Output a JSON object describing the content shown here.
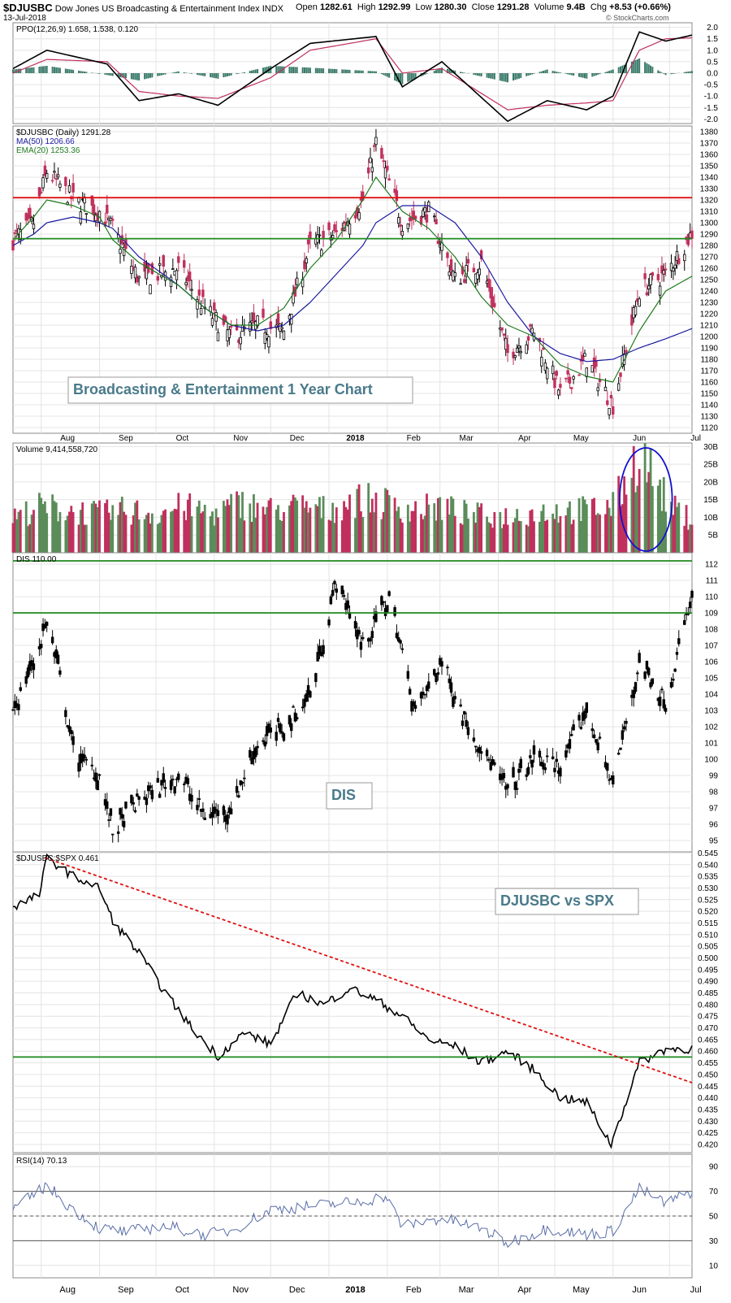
{
  "header": {
    "symbol": "$DJUSBC",
    "name": "Dow Jones US Broadcasting & Entertainment Index",
    "exchange": "INDX",
    "date": "13-Jul-2018",
    "open_label": "Open",
    "open": "1282.61",
    "high_label": "High",
    "high": "1292.99",
    "low_label": "Low",
    "low": "1280.30",
    "close_label": "Close",
    "close": "1291.28",
    "volume_label": "Volume",
    "volume": "9.4B",
    "chg_label": "Chg",
    "chg": "+8.53 (+0.66%)",
    "watermark": "© StockCharts.com"
  },
  "colors": {
    "up": "#5b8c5a",
    "down": "#c0305c",
    "ma50": "#1a1aa0",
    "ema20": "#1e7a1e",
    "resistance": "#e01010",
    "support": "#1e8a1e",
    "trend": "#e01010",
    "ppo_signal": "#c0305c",
    "hist": "#3a7a6a",
    "annot": "#4a7a8a"
  },
  "x_axis": {
    "labels": [
      "Aug",
      "Sep",
      "Oct",
      "Nov",
      "Dec",
      "2018",
      "Feb",
      "Mar",
      "Apr",
      "May",
      "Jun",
      "Jul"
    ],
    "months": [
      "2017-08",
      "2017-09",
      "2017-10",
      "2017-11",
      "2017-12",
      "2018-01",
      "2018-02",
      "2018-03",
      "2018-04",
      "2018-05",
      "2018-06",
      "2018-07"
    ]
  },
  "chart_data": [
    {
      "type": "line",
      "legend": [
        "PPO(12,26,9) 1.658,",
        "1.538,",
        "0.120"
      ],
      "ylim": [
        -2.2,
        2.2
      ],
      "yticks": [
        "2.0",
        "1.5",
        "1.0",
        "0.5",
        "0.0",
        "-0.5",
        "-1.0",
        "-1.5",
        "-2.0"
      ],
      "series": [
        {
          "name": "PPO(12,26,9)",
          "last": 1.658
        },
        {
          "name": "Signal",
          "last": 1.538
        },
        {
          "name": "Histogram",
          "last": 0.12
        }
      ],
      "x": [
        "2017-07-17",
        "2017-08-04",
        "2017-09-05",
        "2017-09-22",
        "2017-10-13",
        "2017-11-03",
        "2017-12-01",
        "2017-12-22",
        "2018-01-26",
        "2018-02-09",
        "2018-03-02",
        "2018-04-06",
        "2018-04-27",
        "2018-05-18",
        "2018-06-01",
        "2018-06-15",
        "2018-06-29",
        "2018-07-13"
      ],
      "ppo": [
        0.2,
        1.0,
        0.4,
        -1.2,
        -0.9,
        -1.4,
        0.2,
        1.3,
        1.6,
        -0.6,
        0.5,
        -2.1,
        -1.2,
        -1.6,
        -1.0,
        1.8,
        1.4,
        1.66
      ],
      "signal": [
        0.0,
        0.6,
        0.5,
        -0.8,
        -1.0,
        -1.1,
        -0.2,
        1.0,
        1.5,
        0.0,
        0.2,
        -1.6,
        -1.4,
        -1.3,
        -1.2,
        1.0,
        1.5,
        1.54
      ]
    },
    {
      "type": "candlestick",
      "legend": [
        "$DJUSBC (Daily) 1291.28",
        "MA(50) 1206.66",
        "EMA(20) 1253.36"
      ],
      "title": "Broadcasting & Entertainment 1 Year Chart",
      "ylim": [
        1115,
        1385
      ],
      "yticks": [
        "1380",
        "1370",
        "1360",
        "1350",
        "1340",
        "1330",
        "1320",
        "1310",
        "1300",
        "1290",
        "1280",
        "1270",
        "1260",
        "1250",
        "1240",
        "1230",
        "1220",
        "1210",
        "1200",
        "1190",
        "1180",
        "1170",
        "1160",
        "1150",
        "1140",
        "1130",
        "1120"
      ],
      "hlines": [
        {
          "y": 1322,
          "kind": "resistance"
        },
        {
          "y": 1286,
          "kind": "support"
        }
      ],
      "x": [
        "2017-07-17",
        "2017-07-28",
        "2017-08-04",
        "2017-08-18",
        "2017-09-01",
        "2017-09-08",
        "2017-09-22",
        "2017-10-13",
        "2017-10-27",
        "2017-11-10",
        "2017-11-24",
        "2017-12-08",
        "2017-12-22",
        "2018-01-05",
        "2018-01-19",
        "2018-01-26",
        "2018-02-09",
        "2018-02-23",
        "2018-03-09",
        "2018-03-23",
        "2018-04-06",
        "2018-04-20",
        "2018-05-04",
        "2018-05-18",
        "2018-06-01",
        "2018-06-15",
        "2018-06-29",
        "2018-07-13"
      ],
      "close": [
        1285,
        1300,
        1345,
        1320,
        1310,
        1295,
        1250,
        1260,
        1225,
        1200,
        1210,
        1205,
        1280,
        1290,
        1320,
        1370,
        1300,
        1310,
        1250,
        1265,
        1185,
        1205,
        1150,
        1180,
        1140,
        1240,
        1255,
        1291
      ],
      "ma50": [
        1280,
        1290,
        1300,
        1305,
        1300,
        1295,
        1270,
        1245,
        1225,
        1210,
        1205,
        1210,
        1230,
        1255,
        1280,
        1300,
        1315,
        1315,
        1300,
        1270,
        1230,
        1200,
        1185,
        1178,
        1180,
        1190,
        1198,
        1207
      ],
      "ema20": [
        1285,
        1305,
        1320,
        1315,
        1305,
        1285,
        1265,
        1245,
        1225,
        1210,
        1210,
        1225,
        1260,
        1285,
        1320,
        1340,
        1310,
        1295,
        1270,
        1235,
        1210,
        1200,
        1175,
        1165,
        1160,
        1205,
        1240,
        1253
      ]
    },
    {
      "type": "bar",
      "legend": [
        "Volume 9,414,558,720"
      ],
      "ylim": [
        0,
        31
      ],
      "yticks": [
        "30B",
        "25B",
        "20B",
        "15B",
        "10B",
        "5B"
      ],
      "highlight": {
        "from": "2018-06-08",
        "to": "2018-06-29"
      },
      "x": [
        "2017-07-17",
        "2017-08-01",
        "2017-08-15",
        "2017-09-01",
        "2017-09-15",
        "2017-10-01",
        "2017-10-15",
        "2017-11-01",
        "2017-11-15",
        "2017-12-01",
        "2017-12-15",
        "2018-01-01",
        "2018-01-15",
        "2018-02-01",
        "2018-02-15",
        "2018-03-01",
        "2018-03-15",
        "2018-04-01",
        "2018-04-15",
        "2018-05-01",
        "2018-05-15",
        "2018-06-01",
        "2018-06-15",
        "2018-06-22",
        "2018-07-01",
        "2018-07-13"
      ],
      "values_b": [
        10,
        13,
        12,
        11,
        12,
        11,
        13,
        11,
        14,
        12,
        13,
        12,
        15,
        14,
        12,
        13,
        11,
        10,
        11,
        12,
        12,
        13,
        28,
        22,
        13,
        9.4
      ]
    },
    {
      "type": "candlestick",
      "legend": [
        "DIS 110.00"
      ],
      "title": "DIS",
      "ylim": [
        94.3,
        112.7
      ],
      "yticks": [
        "112",
        "111",
        "110",
        "109",
        "108",
        "107",
        "106",
        "105",
        "104",
        "103",
        "102",
        "101",
        "100",
        "99",
        "98",
        "97",
        "96",
        "95"
      ],
      "hlines": [
        {
          "y": 112.2,
          "kind": "support"
        },
        {
          "y": 109,
          "kind": "support"
        }
      ],
      "x": [
        "2017-07-17",
        "2017-07-28",
        "2017-08-04",
        "2017-08-10",
        "2017-08-18",
        "2017-09-01",
        "2017-09-08",
        "2017-09-22",
        "2017-10-13",
        "2017-10-27",
        "2017-11-10",
        "2017-11-24",
        "2017-12-08",
        "2017-12-22",
        "2018-01-05",
        "2018-01-19",
        "2018-02-02",
        "2018-02-16",
        "2018-03-02",
        "2018-03-16",
        "2018-04-06",
        "2018-04-20",
        "2018-05-04",
        "2018-05-18",
        "2018-06-01",
        "2018-06-15",
        "2018-06-29",
        "2018-07-13"
      ],
      "close": [
        103,
        106,
        108.5,
        105.5,
        100.5,
        99,
        95.5,
        97.5,
        99,
        96.5,
        97,
        101,
        102,
        104,
        111,
        107,
        110,
        103,
        106,
        102,
        98,
        100,
        99.5,
        103,
        98.5,
        106,
        103.5,
        110
      ]
    },
    {
      "type": "line",
      "legend": [
        "$DJUSBC:$SPX 0.461"
      ],
      "title": "DJUSBC vs SPX",
      "ylim": [
        0.4165,
        0.5455
      ],
      "yticks": [
        "0.545",
        "0.540",
        "0.535",
        "0.530",
        "0.525",
        "0.520",
        "0.515",
        "0.510",
        "0.505",
        "0.500",
        "0.495",
        "0.490",
        "0.485",
        "0.480",
        "0.475",
        "0.470",
        "0.465",
        "0.460",
        "0.455",
        "0.450",
        "0.445",
        "0.440",
        "0.435",
        "0.430",
        "0.425",
        "0.420"
      ],
      "hlines": [
        {
          "y": 0.4575,
          "kind": "support"
        }
      ],
      "trendline": [
        [
          "2017-08-03",
          0.543
        ],
        [
          "2018-07-13",
          0.4465
        ]
      ],
      "x": [
        "2017-07-17",
        "2017-07-31",
        "2017-08-04",
        "2017-08-18",
        "2017-09-01",
        "2017-09-08",
        "2017-09-22",
        "2017-10-06",
        "2017-10-20",
        "2017-11-03",
        "2017-11-17",
        "2017-12-01",
        "2017-12-15",
        "2017-12-29",
        "2018-01-12",
        "2018-01-26",
        "2018-02-09",
        "2018-02-23",
        "2018-03-09",
        "2018-03-23",
        "2018-04-06",
        "2018-04-20",
        "2018-05-04",
        "2018-05-18",
        "2018-05-31",
        "2018-06-15",
        "2018-06-29",
        "2018-07-13"
      ],
      "values": [
        0.522,
        0.527,
        0.543,
        0.535,
        0.53,
        0.516,
        0.502,
        0.485,
        0.47,
        0.458,
        0.468,
        0.463,
        0.485,
        0.48,
        0.487,
        0.482,
        0.475,
        0.465,
        0.462,
        0.455,
        0.46,
        0.452,
        0.44,
        0.438,
        0.42,
        0.455,
        0.461,
        0.461
      ]
    },
    {
      "type": "line",
      "legend": [
        "RSI(14) 70.13"
      ],
      "ylim": [
        0,
        100
      ],
      "yticks": [
        "90",
        "70",
        "50",
        "30",
        "10"
      ],
      "hlines": [
        {
          "y": 70
        },
        {
          "y": 50
        },
        {
          "y": 30
        }
      ],
      "x": [
        "2017-07-17",
        "2017-08-04",
        "2017-08-18",
        "2017-09-01",
        "2017-09-15",
        "2017-10-06",
        "2017-10-27",
        "2017-11-10",
        "2017-12-01",
        "2017-12-22",
        "2018-01-19",
        "2018-01-31",
        "2018-02-09",
        "2018-03-02",
        "2018-03-23",
        "2018-04-06",
        "2018-04-27",
        "2018-05-18",
        "2018-06-01",
        "2018-06-15",
        "2018-06-29",
        "2018-07-13"
      ],
      "values": [
        55,
        75,
        55,
        40,
        37,
        42,
        35,
        38,
        55,
        58,
        62,
        66,
        42,
        48,
        40,
        28,
        40,
        35,
        38,
        72,
        60,
        70
      ]
    }
  ]
}
